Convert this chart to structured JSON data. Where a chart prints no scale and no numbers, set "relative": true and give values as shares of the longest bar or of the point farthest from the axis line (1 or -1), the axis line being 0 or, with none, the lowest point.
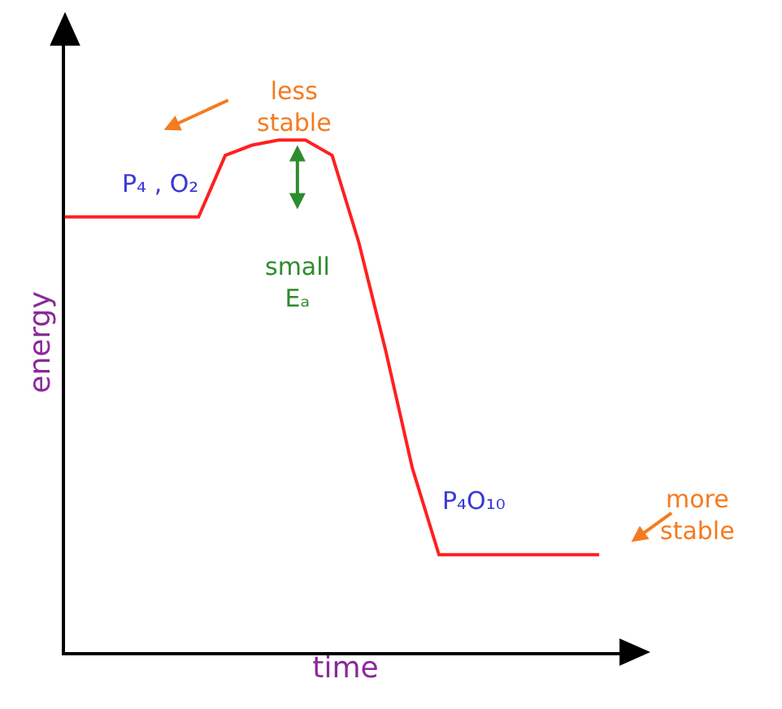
{
  "chart_data": {
    "type": "line",
    "relative": true,
    "xlabel": "time",
    "ylabel": "energy",
    "tick_labels": false,
    "marker": "none",
    "line_style": "solid",
    "categories": [
      null,
      null,
      null,
      null,
      null,
      null,
      null,
      null,
      null,
      null,
      null,
      null,
      null,
      null,
      null,
      null,
      null,
      null,
      null,
      null,
      null
    ],
    "series": [
      {
        "color": "#ff2020",
        "values": [
          0.85,
          0.85,
          0.85,
          0.85,
          0.85,
          0.85,
          0.97,
          0.99,
          1,
          1,
          0.97,
          0.8,
          0.59,
          0.36,
          0.19,
          0.19,
          0.19,
          0.19,
          0.19,
          0.19,
          0.19
        ]
      }
    ],
    "annotations": [
      "less\nstable",
      "P₄ , O₂",
      "small\nEₐ",
      "P₄O₁₀",
      "more\nstable"
    ]
  }
}
